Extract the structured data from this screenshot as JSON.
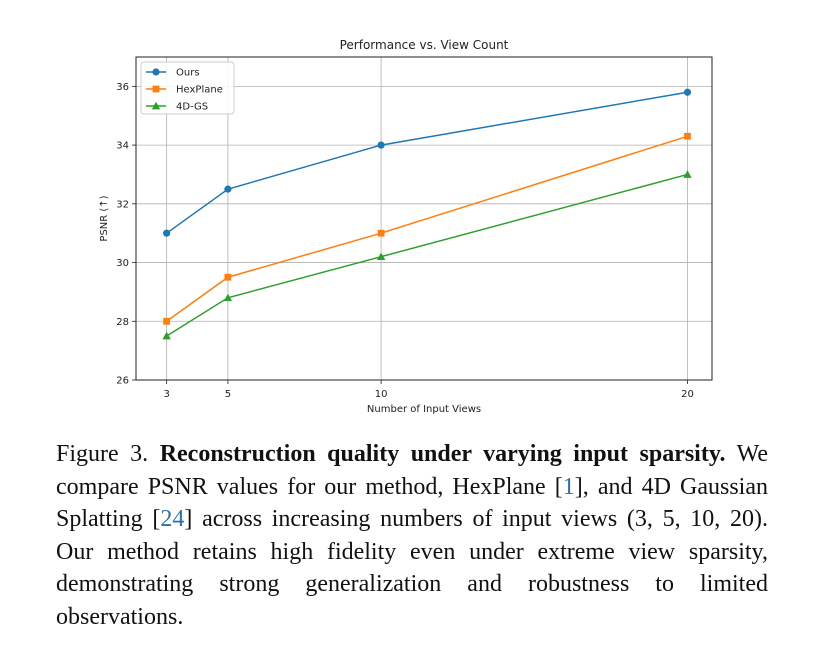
{
  "chart_data": {
    "type": "line",
    "title": "Performance vs. View Count",
    "xlabel": "Number of Input Views",
    "ylabel": "PSNR (↑)",
    "x": [
      3,
      5,
      10,
      20
    ],
    "xticks": [
      3,
      5,
      10,
      20
    ],
    "yticks": [
      26,
      28,
      30,
      32,
      34,
      36
    ],
    "xlim": [
      2.0,
      20.8
    ],
    "ylim": [
      26,
      37.0
    ],
    "grid": true,
    "legend_position": "top-left",
    "series": [
      {
        "name": "Ours",
        "marker": "circle",
        "color": "#1f77b4",
        "values": [
          31.0,
          32.5,
          34.0,
          35.8
        ]
      },
      {
        "name": "HexPlane",
        "marker": "square",
        "color": "#ff7f0e",
        "values": [
          28.0,
          29.5,
          31.0,
          34.3
        ]
      },
      {
        "name": "4D-GS",
        "marker": "triangle",
        "color": "#2ca02c",
        "values": [
          27.5,
          28.8,
          30.2,
          33.0
        ]
      }
    ]
  },
  "caption": {
    "label": "Figure 3.",
    "bold": "Reconstruction quality under varying input sparsity.",
    "text_1": "We compare PSNR values for our method, HexPlane [",
    "cite_1": "1",
    "text_2": "], and 4D Gaussian Splatting [",
    "cite_2": "24",
    "text_3": "] across increasing numbers of input views (3, 5, 10, 20). Our method retains high fidelity even under extreme view sparsity, demonstrating strong generalization and robustness to limited observations."
  }
}
